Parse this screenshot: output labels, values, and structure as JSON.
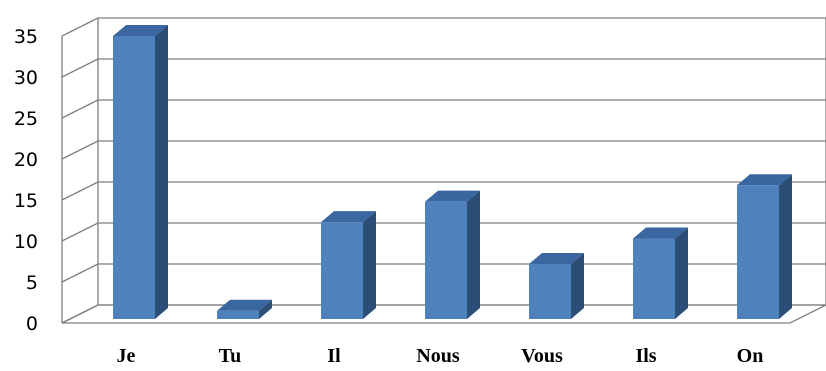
{
  "chart_data": {
    "type": "bar",
    "categories": [
      "Je",
      "Tu",
      "Il",
      "Nous",
      "Vous",
      "Ils",
      "On"
    ],
    "values": [
      35,
      1.5,
      12.3,
      14.8,
      7.2,
      10.3,
      16.8
    ],
    "ylim": [
      0,
      35
    ],
    "yticks": [
      0,
      5,
      10,
      15,
      20,
      25,
      30,
      35
    ],
    "grid": true,
    "three_d": true,
    "bar_color": "#4f81bd",
    "bar_side_color": "#2c4d75",
    "bar_top_color": "#3a67a0",
    "grid_color": "#7f7f7f"
  }
}
